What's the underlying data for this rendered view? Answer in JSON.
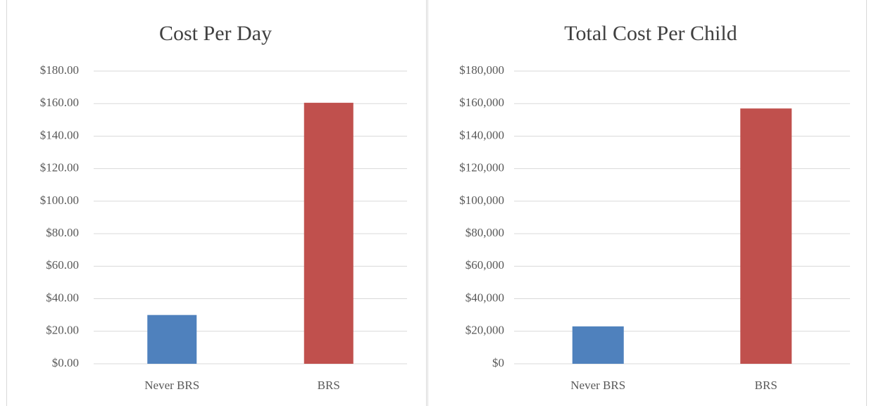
{
  "chart_data": [
    {
      "type": "bar",
      "title": "Cost Per Day",
      "categories": [
        "Never BRS",
        "BRS"
      ],
      "values": [
        30,
        160.5
      ],
      "colors": [
        "#4f81bd",
        "#c0504d"
      ],
      "ylim": [
        0,
        180
      ],
      "yticks": [
        {
          "value": 0,
          "label": "$0.00"
        },
        {
          "value": 20,
          "label": "$20.00"
        },
        {
          "value": 40,
          "label": "$40.00"
        },
        {
          "value": 60,
          "label": "$60.00"
        },
        {
          "value": 80,
          "label": "$80.00"
        },
        {
          "value": 100,
          "label": "$100.00"
        },
        {
          "value": 120,
          "label": "$120.00"
        },
        {
          "value": 140,
          "label": "$140.00"
        },
        {
          "value": 160,
          "label": "$160.00"
        },
        {
          "value": 180,
          "label": "$180.00"
        }
      ],
      "grid": true
    },
    {
      "type": "bar",
      "title": "Total Cost Per Child",
      "categories": [
        "Never BRS",
        "BRS"
      ],
      "values": [
        23000,
        157000
      ],
      "colors": [
        "#4f81bd",
        "#c0504d"
      ],
      "ylim": [
        0,
        180000
      ],
      "yticks": [
        {
          "value": 0,
          "label": "$0"
        },
        {
          "value": 20000,
          "label": "$20,000"
        },
        {
          "value": 40000,
          "label": "$40,000"
        },
        {
          "value": 60000,
          "label": "$60,000"
        },
        {
          "value": 80000,
          "label": "$80,000"
        },
        {
          "value": 100000,
          "label": "$100,000"
        },
        {
          "value": 120000,
          "label": "$120,000"
        },
        {
          "value": 140000,
          "label": "$140,000"
        },
        {
          "value": 160000,
          "label": "$160,000"
        },
        {
          "value": 180000,
          "label": "$180,000"
        }
      ],
      "grid": true
    }
  ]
}
